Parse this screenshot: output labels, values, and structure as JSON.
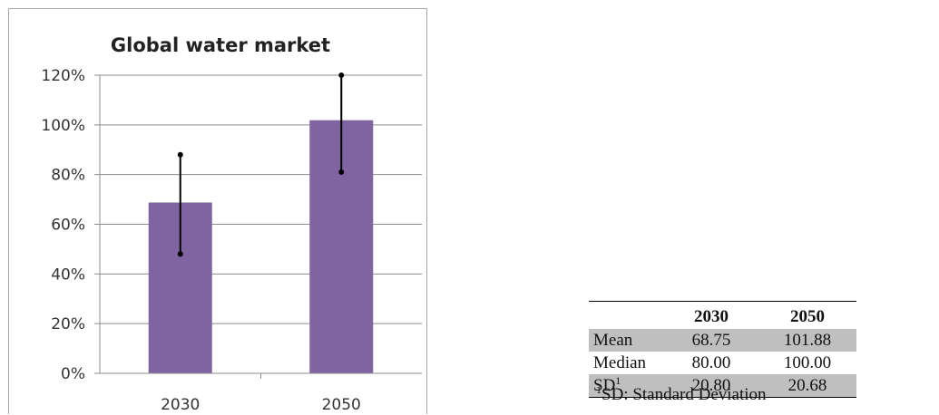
{
  "chart_data": {
    "type": "bar",
    "title": "Global water market",
    "categories": [
      "2030",
      "2050"
    ],
    "values": [
      68.75,
      101.88
    ],
    "error_low": [
      48,
      81
    ],
    "error_high": [
      88,
      120
    ],
    "ylim": [
      0,
      120
    ],
    "yticks": [
      "0%",
      "20%",
      "40%",
      "60%",
      "80%",
      "100%",
      "120%"
    ],
    "ytick_values": [
      0,
      20,
      40,
      60,
      80,
      100,
      120
    ],
    "grid": true,
    "bar_color": "#8064a2"
  },
  "table": {
    "headers": [
      "",
      "2030",
      "2050"
    ],
    "rows": [
      {
        "label": "Mean",
        "marker": "",
        "a": "68.75",
        "b": "101.88"
      },
      {
        "label": "Median",
        "marker": "",
        "a": "80.00",
        "b": "100.00"
      },
      {
        "label": "SD",
        "marker": "1",
        "a": "20.80",
        "b": "20.68"
      }
    ],
    "row_shading": "#bfbfbf"
  },
  "footnote": {
    "marker": "1",
    "text": "SD: Standard Deviation"
  }
}
